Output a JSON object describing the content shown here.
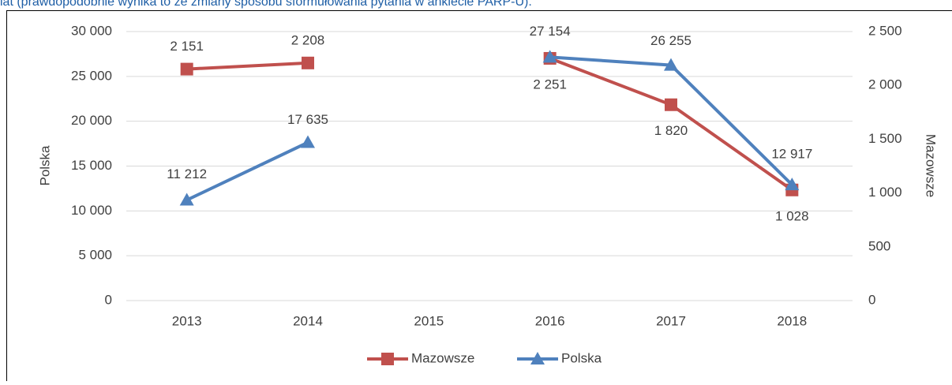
{
  "caption": "lat (prawdopodobnie wynika to ze zmiany sposobu sformułowania pytania w ankiecie PARP-U).",
  "chart_data": {
    "type": "line",
    "categories": [
      "2013",
      "2014",
      "2015",
      "2016",
      "2017",
      "2018"
    ],
    "ylabel": "Polska",
    "y2label": "Mazowsze",
    "ylim": [
      0,
      30000
    ],
    "yticks": [
      {
        "value": 0,
        "label": "0"
      },
      {
        "value": 5000,
        "label": "5 000"
      },
      {
        "value": 10000,
        "label": "10 000"
      },
      {
        "value": 15000,
        "label": "15 000"
      },
      {
        "value": 20000,
        "label": "20 000"
      },
      {
        "value": 25000,
        "label": "25 000"
      },
      {
        "value": 30000,
        "label": "30 000"
      }
    ],
    "y2lim": [
      0,
      2500
    ],
    "y2ticks": [
      0,
      500,
      {
        "value": 1000,
        "label": "1 000"
      },
      {
        "value": 1500,
        "label": "1 500"
      },
      {
        "value": 2000,
        "label": "2 000"
      },
      {
        "value": 2500,
        "label": "2 500"
      }
    ],
    "grid": true,
    "legend": "bottom",
    "series": [
      {
        "name": "Mazowsze",
        "color": "#c0504d",
        "axis": "y2",
        "marker": "square",
        "values": [
          2151,
          2208,
          null,
          2251,
          1820,
          1028
        ],
        "value_labels": [
          "2 151",
          "2 208",
          null,
          "2 251",
          "1 820",
          "1 028"
        ]
      },
      {
        "name": "Polska",
        "color": "#4f81bd",
        "marker": "triangle",
        "values": [
          11212,
          17635,
          null,
          27154,
          26255,
          12917
        ],
        "value_labels": [
          "11 212",
          "17 635",
          null,
          "27 154",
          "26 255",
          "12 917"
        ]
      }
    ]
  }
}
